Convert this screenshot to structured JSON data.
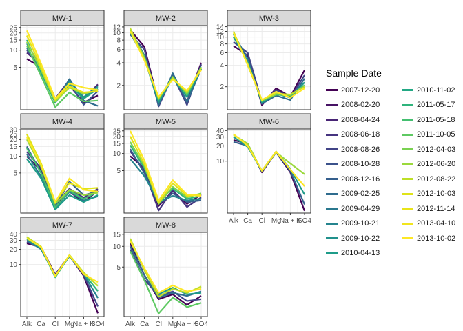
{
  "chart_data": {
    "type": "line",
    "y_scale": "log10",
    "grid": true,
    "facet_strip_fill": "#d9d9d9",
    "categories": [
      "Alk",
      "Ca",
      "Cl",
      "Mg",
      "Na + K",
      "SO4"
    ],
    "legend": {
      "title": "Sample Date",
      "position": "right",
      "entries": [
        {
          "label": "2007-12-20",
          "color": "#440154"
        },
        {
          "label": "2008-02-20",
          "color": "#471365"
        },
        {
          "label": "2008-04-24",
          "color": "#482475"
        },
        {
          "label": "2008-06-18",
          "color": "#463480"
        },
        {
          "label": "2008-08-26",
          "color": "#414487"
        },
        {
          "label": "2008-10-28",
          "color": "#3b528b"
        },
        {
          "label": "2008-12-16",
          "color": "#355f8d"
        },
        {
          "label": "2009-02-25",
          "color": "#2f6c8e"
        },
        {
          "label": "2009-04-29",
          "color": "#2a788e"
        },
        {
          "label": "2009-10-21",
          "color": "#25848e"
        },
        {
          "label": "2009-10-22",
          "color": "#21918c"
        },
        {
          "label": "2010-04-13",
          "color": "#1e9c89"
        },
        {
          "label": "2010-11-02",
          "color": "#22a884"
        },
        {
          "label": "2011-05-17",
          "color": "#2fb47c"
        },
        {
          "label": "2011-05-18",
          "color": "#44bf70"
        },
        {
          "label": "2011-10-05",
          "color": "#5ec962"
        },
        {
          "label": "2012-04-03",
          "color": "#7ad151"
        },
        {
          "label": "2012-06-20",
          "color": "#9bd93c"
        },
        {
          "label": "2012-08-22",
          "color": "#bddf26"
        },
        {
          "label": "2012-10-03",
          "color": "#dfe318"
        },
        {
          "label": "2012-11-14",
          "color": "#e8e419"
        },
        {
          "label": "2013-04-10",
          "color": "#f1e51d"
        },
        {
          "label": "2013-10-02",
          "color": "#fde725"
        }
      ]
    },
    "panels": [
      {
        "title": "MW-1",
        "y_ticks": [
          5,
          10,
          15,
          20,
          25
        ],
        "ylim": [
          0.9,
          27
        ],
        "series": [
          {
            "values": [
              7,
              5,
              1.3,
              2.4,
              1.2,
              1.6
            ]
          },
          {
            "values": [
              9,
              5.5,
              1.4,
              3,
              1.4,
              2.5
            ]
          },
          {
            "values": [
              10,
              5,
              1.3,
              2.6,
              1.1,
              1.9
            ]
          },
          {
            "values": [
              11,
              4.2,
              1.2,
              3.1,
              1.3,
              1.05
            ]
          },
          {
            "values": [
              13,
              5,
              1.3,
              2.8,
              1.5,
              2.3
            ]
          },
          {
            "values": [
              15,
              4,
              1.2,
              2.5,
              1.4,
              2.1
            ]
          },
          {
            "values": [
              12,
              3.5,
              1.0,
              1.8,
              1.25,
              1.3
            ]
          },
          {
            "values": [
              14,
              4.5,
              1.25,
              2.2,
              1.7,
              2.0
            ]
          },
          {
            "values": [
              18,
              5,
              1.35,
              2.3,
              1.8,
              1.9
            ]
          },
          {
            "values": [
              22,
              5.8,
              1.4,
              2.6,
              2.2,
              2.0
            ]
          }
        ]
      },
      {
        "title": "MW-2",
        "y_ticks": [
          2,
          4,
          6,
          8,
          10,
          12
        ],
        "ylim": [
          0.95,
          12.5
        ],
        "series": [
          {
            "values": [
              11,
              6.5,
              1.15,
              2.8,
              1.2,
              4.0
            ]
          },
          {
            "values": [
              9.5,
              6,
              1.05,
              2.7,
              1.1,
              3.8
            ]
          },
          {
            "values": [
              11,
              5,
              1.1,
              2.9,
              1.2,
              3.3
            ]
          },
          {
            "values": [
              10,
              4.5,
              1.2,
              2.5,
              1.4,
              3.3
            ]
          },
          {
            "values": [
              11,
              4.8,
              1.3,
              2.6,
              1.5,
              3.5
            ]
          },
          {
            "values": [
              11.5,
              4.5,
              1.35,
              2.5,
              1.6,
              3.4
            ]
          },
          {
            "values": [
              10.5,
              4.3,
              1.4,
              2.4,
              1.7,
              3.2
            ]
          }
        ]
      },
      {
        "title": "MW-3",
        "y_ticks": [
          2,
          4,
          6,
          8,
          10,
          12,
          14
        ],
        "ylim": [
          0.95,
          14.5
        ],
        "series": [
          {
            "values": [
              7.5,
              5.5,
              1.1,
              1.9,
              1.45,
              3.4
            ]
          },
          {
            "values": [
              8.5,
              6,
              1.2,
              1.8,
              1.4,
              2.9
            ]
          },
          {
            "values": [
              11,
              5,
              1.15,
              1.5,
              1.3,
              2.6
            ]
          },
          {
            "values": [
              10,
              4.5,
              1.2,
              1.6,
              1.4,
              2.3
            ]
          },
          {
            "values": [
              11,
              4.2,
              1.25,
              1.55,
              1.5,
              2.1
            ]
          },
          {
            "values": [
              12,
              4,
              1.3,
              1.6,
              1.55,
              2.0
            ]
          },
          {
            "values": [
              11.5,
              4.1,
              1.3,
              1.7,
              1.4,
              1.9
            ]
          }
        ]
      },
      {
        "title": "MW-4",
        "y_ticks": [
          5,
          10,
          15,
          20,
          25,
          30
        ],
        "ylim": [
          0.95,
          31
        ],
        "series": [
          {
            "values": [
              10,
              5.5,
              1.3,
              2.3,
              1.5,
              2.4
            ]
          },
          {
            "values": [
              12,
              6,
              1.4,
              2.6,
              1.8,
              2.6
            ]
          },
          {
            "values": [
              15,
              5,
              1.25,
              3.5,
              2,
              2.3
            ]
          },
          {
            "values": [
              11,
              4.3,
              1.15,
              2.3,
              1.6,
              1.9
            ]
          },
          {
            "values": [
              9,
              4,
              1.1,
              2,
              1.5,
              2.0
            ]
          },
          {
            "values": [
              14,
              5,
              1.2,
              2.4,
              1.7,
              2.3
            ]
          },
          {
            "values": [
              20,
              6.5,
              1.4,
              2.5,
              2.0,
              2.2
            ]
          },
          {
            "values": [
              25,
              7.5,
              1.5,
              3.3,
              2.6,
              2.7
            ]
          },
          {
            "values": [
              22,
              7,
              1.5,
              4.0,
              2.5,
              2.3
            ]
          }
        ]
      },
      {
        "title": "MW-5",
        "y_ticks": [
          5,
          10,
          15,
          20,
          25
        ],
        "ylim": [
          0.9,
          27
        ],
        "series": [
          {
            "values": [
              9,
              5.5,
              1.2,
              2.2,
              1.3,
              1.9
            ]
          },
          {
            "values": [
              11,
              5,
              1.0,
              2.3,
              1.15,
              1.7
            ]
          },
          {
            "values": [
              12,
              4.5,
              1.3,
              2.0,
              1.4,
              1.5
            ]
          },
          {
            "values": [
              8,
              4,
              1.4,
              1.8,
              1.5,
              1.6
            ]
          },
          {
            "values": [
              14,
              5.5,
              1.5,
              2.4,
              1.6,
              1.8
            ]
          },
          {
            "values": [
              16,
              6,
              1.3,
              2.6,
              1.7,
              2.0
            ]
          },
          {
            "values": [
              20,
              6.5,
              1.35,
              3.0,
              1.8,
              1.9
            ]
          },
          {
            "values": [
              25,
              7.5,
              1.5,
              3.4,
              1.9,
              1.8
            ]
          }
        ]
      },
      {
        "title": "MW-6",
        "y_ticks": [
          10,
          20,
          30,
          40
        ],
        "ylim": [
          0.95,
          43
        ],
        "series": [
          {
            "values": [
              26,
              22,
              6,
              15,
              6,
              1.05
            ]
          },
          {
            "values": [
              24,
              20,
              6.2,
              15,
              6.4,
              1.4
            ]
          },
          {
            "values": [
              30,
              19,
              6.5,
              15.5,
              7,
              2.2
            ]
          },
          {
            "values": [
              33,
              22,
              6.4,
              15,
              9,
              5.5
            ]
          },
          {
            "values": [
              34,
              20,
              6.5,
              15.5,
              6.8,
              3.2
            ]
          }
        ]
      },
      {
        "title": "MW-7",
        "y_ticks": [
          10,
          20,
          30,
          40
        ],
        "ylim": [
          0.95,
          43
        ],
        "series": [
          {
            "values": [
              26,
              22,
              6.4,
              15,
              6,
              1.1
            ]
          },
          {
            "values": [
              28,
              21,
              6.2,
              15,
              6.3,
              1.5
            ]
          },
          {
            "values": [
              30,
              20,
              6.0,
              14.5,
              6.6,
              2.2
            ]
          },
          {
            "values": [
              32,
              21.5,
              5.6,
              15,
              6.8,
              3.0
            ]
          },
          {
            "values": [
              35,
              22.5,
              5.8,
              15.5,
              7.0,
              3.8
            ]
          },
          {
            "values": [
              33,
              22,
              6.0,
              15.2,
              6.5,
              4.5
            ]
          }
        ]
      },
      {
        "title": "MW-8",
        "y_ticks": [
          5,
          10,
          15
        ],
        "ylim": [
          0.95,
          16
        ],
        "series": [
          {
            "values": [
              11,
              3.8,
              1.7,
              2.0,
              1.4,
              1.9
            ]
          },
          {
            "values": [
              9,
              3.3,
              1.9,
              2.2,
              1.6,
              1.7
            ]
          },
          {
            "values": [
              10,
              3.8,
              1.8,
              2.1,
              1.9,
              2.2
            ]
          },
          {
            "values": [
              12,
              4.5,
              2.0,
              2.5,
              2.0,
              2.1
            ]
          },
          {
            "values": [
              8.5,
              3.2,
              1.05,
              1.8,
              1.3,
              1.5
            ]
          },
          {
            "values": [
              13,
              4.5,
              1.85,
              2.4,
              2.1,
              2.6
            ]
          },
          {
            "values": [
              12,
              4.8,
              2.1,
              2.7,
              2.2,
              2.4
            ]
          }
        ]
      }
    ]
  }
}
